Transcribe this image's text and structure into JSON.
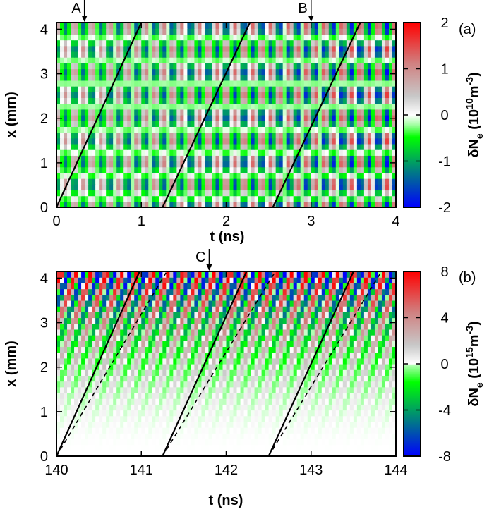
{
  "chart_data": [
    {
      "type": "heatmap",
      "panel": "(a)",
      "xlabel": "t (ns)",
      "ylabel": "x (mm)",
      "xlim": [
        0,
        4
      ],
      "ylim": [
        0,
        4.15
      ],
      "xticks": [
        "0",
        "1",
        "2",
        "3",
        "4"
      ],
      "yticks": [
        "0",
        "1",
        "2",
        "3",
        "4"
      ],
      "colorbar": {
        "label_main": "δN",
        "label_sub": "e",
        "label_unit_open": " (10",
        "label_exp": "10",
        "label_unit_mid": "m",
        "label_unit_exp": "-3",
        "label_unit_close": ")",
        "range": [
          -2,
          2
        ],
        "ticks": [
          "2",
          "1",
          "0",
          "-1",
          "-2"
        ],
        "tick_values": [
          2,
          1,
          0,
          -1,
          -2
        ]
      },
      "markers": [
        {
          "label": "A",
          "t": 0.33
        },
        {
          "label": "B",
          "t": 3.0
        }
      ],
      "lines": [
        {
          "style": "solid",
          "t0": 0.0,
          "t1": 1.0
        },
        {
          "style": "solid",
          "t0": 1.25,
          "t1": 2.28
        },
        {
          "style": "solid",
          "t0": 2.55,
          "t1": 3.58
        }
      ]
    },
    {
      "type": "heatmap",
      "panel": "(b)",
      "xlabel": "t (ns)",
      "ylabel": "x (mm)",
      "xlim": [
        140,
        144
      ],
      "ylim": [
        0,
        4.15
      ],
      "xticks": [
        "140",
        "141",
        "142",
        "143",
        "144"
      ],
      "yticks": [
        "0",
        "1",
        "2",
        "3",
        "4"
      ],
      "colorbar": {
        "label_main": "δN",
        "label_sub": "e",
        "label_unit_open": " (10",
        "label_exp": "15",
        "label_unit_mid": "m",
        "label_unit_exp": "-3",
        "label_unit_close": ")",
        "range": [
          -8,
          8
        ],
        "ticks": [
          "8",
          "4",
          "0",
          "-4",
          "-8"
        ],
        "tick_values": [
          8,
          4,
          0,
          -4,
          -8
        ]
      },
      "markers": [
        {
          "label": "C",
          "t": 141.8
        }
      ],
      "lines": [
        {
          "style": "solid",
          "t0": 140.0,
          "t1": 140.98
        },
        {
          "style": "dashed",
          "t0": 140.0,
          "t1": 141.3
        },
        {
          "style": "solid",
          "t0": 141.25,
          "t1": 142.24
        },
        {
          "style": "dashed",
          "t0": 141.25,
          "t1": 142.58
        },
        {
          "style": "solid",
          "t0": 142.5,
          "t1": 143.5
        },
        {
          "style": "dashed",
          "t0": 142.5,
          "t1": 143.83
        }
      ]
    }
  ]
}
